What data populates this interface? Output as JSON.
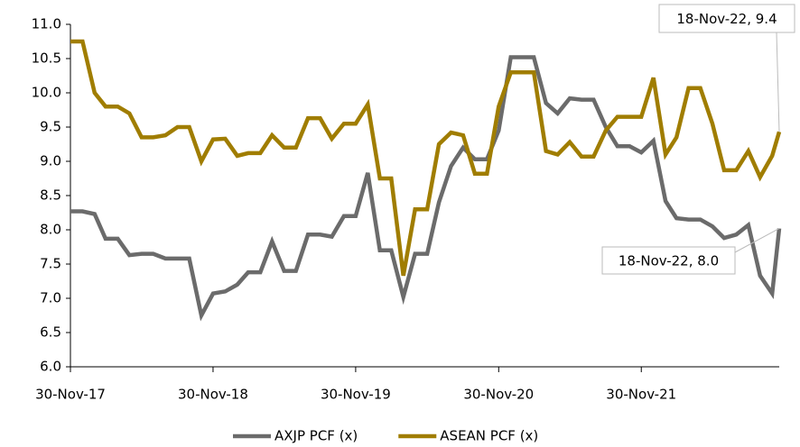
{
  "chart_data": {
    "type": "line",
    "x": [
      "30-Nov-17",
      "31-Dec-17",
      "31-Jan-18",
      "28-Feb-18",
      "31-Mar-18",
      "30-Apr-18",
      "31-May-18",
      "30-Jun-18",
      "31-Jul-18",
      "31-Aug-18",
      "30-Sep-18",
      "31-Oct-18",
      "30-Nov-18",
      "31-Dec-18",
      "31-Jan-19",
      "28-Feb-19",
      "31-Mar-19",
      "30-Apr-19",
      "31-May-19",
      "30-Jun-19",
      "31-Jul-19",
      "31-Aug-19",
      "30-Sep-19",
      "31-Oct-19",
      "30-Nov-19",
      "31-Dec-19",
      "31-Jan-20",
      "29-Feb-20",
      "31-Mar-20",
      "30-Apr-20",
      "31-May-20",
      "30-Jun-20",
      "31-Jul-20",
      "31-Aug-20",
      "30-Sep-20",
      "31-Oct-20",
      "30-Nov-20",
      "31-Dec-20",
      "31-Jan-21",
      "28-Feb-21",
      "31-Mar-21",
      "30-Apr-21",
      "31-May-21",
      "30-Jun-21",
      "31-Jul-21",
      "31-Aug-21",
      "30-Sep-21",
      "31-Oct-21",
      "30-Nov-21",
      "31-Dec-21",
      "31-Jan-22",
      "28-Feb-22",
      "31-Mar-22",
      "30-Apr-22",
      "31-May-22",
      "30-Jun-22",
      "31-Jul-22",
      "31-Aug-22",
      "30-Sep-22",
      "31-Oct-22",
      "18-Nov-22"
    ],
    "series": [
      {
        "name": "AXJP PCF (x)",
        "color": "#6b6b6b",
        "values": [
          8.27,
          8.27,
          8.23,
          7.87,
          7.87,
          7.63,
          7.65,
          7.65,
          7.58,
          7.58,
          7.58,
          6.75,
          7.07,
          7.1,
          7.2,
          7.38,
          7.38,
          7.83,
          7.4,
          7.4,
          7.93,
          7.93,
          7.9,
          8.2,
          8.2,
          8.83,
          7.7,
          7.7,
          7.02,
          7.65,
          7.65,
          8.4,
          8.93,
          9.2,
          9.03,
          9.03,
          9.45,
          10.52,
          10.52,
          10.52,
          9.85,
          9.7,
          9.92,
          9.9,
          9.9,
          9.5,
          9.22,
          9.22,
          9.13,
          9.3,
          8.42,
          8.17,
          8.15,
          8.15,
          8.05,
          7.88,
          7.93,
          8.07,
          7.33,
          7.07,
          8.02
        ]
      },
      {
        "name": "ASEAN PCF (x)",
        "color": "#a07d00",
        "values": [
          10.75,
          10.75,
          10.0,
          9.8,
          9.8,
          9.7,
          9.35,
          9.35,
          9.38,
          9.5,
          9.5,
          9.0,
          9.32,
          9.33,
          9.08,
          9.12,
          9.12,
          9.38,
          9.2,
          9.2,
          9.63,
          9.63,
          9.33,
          9.55,
          9.55,
          9.83,
          8.75,
          8.75,
          7.33,
          8.3,
          8.3,
          9.25,
          9.42,
          9.38,
          8.82,
          8.82,
          9.8,
          10.3,
          10.3,
          10.3,
          9.15,
          9.1,
          9.28,
          9.07,
          9.07,
          9.45,
          9.65,
          9.65,
          9.65,
          10.22,
          9.1,
          9.35,
          10.07,
          10.07,
          9.55,
          8.87,
          8.87,
          9.15,
          8.77,
          9.08,
          9.43
        ]
      }
    ],
    "xlim": [
      "30-Nov-17",
      "18-Nov-22"
    ],
    "xticks": [
      "30-Nov-17",
      "30-Nov-18",
      "30-Nov-19",
      "30-Nov-20",
      "30-Nov-21"
    ],
    "ylim": [
      6,
      11
    ],
    "yticks": [
      {
        "value": 6,
        "label": "6.0"
      },
      {
        "value": 6.5,
        "label": "6.5"
      },
      {
        "value": 7,
        "label": "7.0"
      },
      {
        "value": 7.5,
        "label": "7.5"
      },
      {
        "value": 8,
        "label": "8.0"
      },
      {
        "value": 8.5,
        "label": "8.5"
      },
      {
        "value": 9,
        "label": "9.0"
      },
      {
        "value": 9.5,
        "label": "9.5"
      },
      {
        "value": 10,
        "label": "10.0"
      },
      {
        "value": 10.5,
        "label": "10.5"
      },
      {
        "value": 11,
        "label": "11.0"
      }
    ],
    "grid": false,
    "legend": "bottom",
    "annotations": [
      {
        "text": "18-Nov-22, 9.4",
        "series": 1
      },
      {
        "text": "18-Nov-22, 8.0",
        "series": 0
      }
    ]
  }
}
